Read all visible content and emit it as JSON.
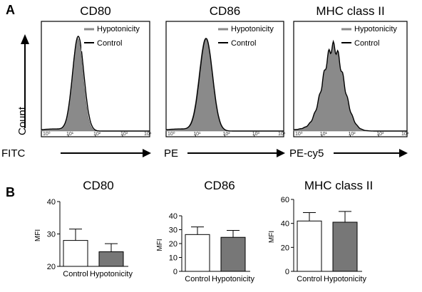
{
  "panel_labels": {
    "a": "A",
    "b": "B"
  },
  "chart_data": [
    {
      "type": "area",
      "title": "CD80",
      "xlabel": "FITC",
      "ylabel": "Count",
      "x_scale": "log",
      "xlim": [
        1,
        10000
      ],
      "x_ticks": [
        "10⁰",
        "10¹",
        "10²",
        "10³",
        "10⁴"
      ],
      "legend": [
        "Hypotonicity",
        "Control"
      ],
      "legend_position": "top-right",
      "series": [
        {
          "name": "Hypotonicity",
          "color": "#8a8a8a",
          "peak_x": 22,
          "width_log": 0.2,
          "height": 0.9
        },
        {
          "name": "Control",
          "color": "#000000",
          "peak_x": 23,
          "width_log": 0.21,
          "height": 0.92
        }
      ]
    },
    {
      "type": "area",
      "title": "CD86",
      "xlabel": "PE",
      "ylabel": "Count",
      "x_scale": "log",
      "xlim": [
        1,
        10000
      ],
      "x_ticks": [
        "10⁰",
        "10¹",
        "10²",
        "10³",
        "10⁴"
      ],
      "legend": [
        "Hypotonicity",
        "Control"
      ],
      "legend_position": "top-right",
      "series": [
        {
          "name": "Hypotonicity",
          "color": "#8a8a8a",
          "peak_x": 22,
          "width_log": 0.22,
          "height": 0.9
        },
        {
          "name": "Control",
          "color": "#000000",
          "peak_x": 23,
          "width_log": 0.22,
          "height": 0.9
        }
      ]
    },
    {
      "type": "area",
      "title": "MHC class II",
      "xlabel": "PE-cy5",
      "ylabel": "Count",
      "x_scale": "log",
      "xlim": [
        1,
        10000
      ],
      "x_ticks": [
        "10⁰",
        "10¹",
        "10²",
        "10³",
        "10⁴"
      ],
      "legend": [
        "Hypotonicity",
        "Control"
      ],
      "legend_position": "top-right",
      "series": [
        {
          "name": "Hypotonicity",
          "color": "#8a8a8a",
          "peak_x": 25,
          "width_log": 0.36,
          "height": 0.82
        },
        {
          "name": "Control",
          "color": "#000000",
          "peak_x": 25,
          "width_log": 0.36,
          "height": 0.82
        }
      ]
    },
    {
      "type": "bar",
      "title": "CD80",
      "ylabel": "MFI",
      "categories": [
        "Control",
        "Hypotonicity"
      ],
      "values": [
        28,
        24.5
      ],
      "errors": [
        3.5,
        2.5
      ],
      "colors": [
        "#ffffff",
        "#777777"
      ],
      "ylim": [
        0,
        40
      ],
      "yticks": [
        20,
        30,
        40
      ]
    },
    {
      "type": "bar",
      "title": "CD86",
      "ylabel": "MFI",
      "categories": [
        "Control",
        "Hypotonicity"
      ],
      "values": [
        26.5,
        24.5
      ],
      "errors": [
        5.5,
        5.0
      ],
      "colors": [
        "#ffffff",
        "#777777"
      ],
      "ylim": [
        0,
        40
      ],
      "yticks": [
        0,
        10,
        20,
        30,
        40
      ]
    },
    {
      "type": "bar",
      "title": "MHC class II",
      "ylabel": "MFI",
      "categories": [
        "Control",
        "Hypotonicity"
      ],
      "values": [
        42,
        41
      ],
      "errors": [
        7,
        9
      ],
      "colors": [
        "#ffffff",
        "#777777"
      ],
      "ylim": [
        0,
        60
      ],
      "yticks": [
        0,
        20,
        40,
        60
      ]
    }
  ]
}
